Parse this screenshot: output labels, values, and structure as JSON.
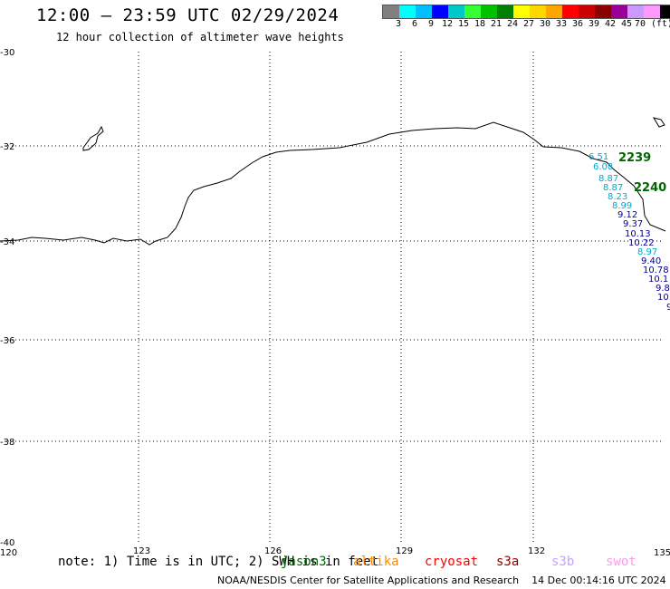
{
  "header": {
    "title": "12:00 – 23:59 UTC 02/29/2024",
    "subtitle": "12 hour collection of altimeter wave heights"
  },
  "colorbar": {
    "colors": [
      "#808080",
      "#00ffff",
      "#00bfff",
      "#0000ff",
      "#00c8c8",
      "#33ff33",
      "#00c000",
      "#008000",
      "#ffff00",
      "#ffd700",
      "#ffa500",
      "#ff0000",
      "#cc0000",
      "#8b0000",
      "#990099",
      "#cc99ff",
      "#ff99ff",
      "#000000"
    ],
    "labels": [
      "3",
      "6",
      "9",
      "12",
      "15",
      "18",
      "21",
      "24",
      "27",
      "30",
      "33",
      "36",
      "39",
      "42",
      "45",
      "70 (ft)"
    ]
  },
  "map": {
    "lon_ticks": [
      "120",
      "123",
      "126",
      "129",
      "132",
      "135"
    ],
    "lat_ticks": [
      "-30",
      "-32",
      "-34",
      "-36",
      "-38",
      "-40"
    ],
    "pass_labels": [
      {
        "text": "2239",
        "color": "#006600"
      },
      {
        "text": "2240",
        "color": "#006600"
      }
    ],
    "observations": [
      {
        "value": "6.51",
        "color": "#00aacc"
      },
      {
        "value": "6.08",
        "color": "#00aacc"
      },
      {
        "value": "8.87",
        "color": "#00aacc"
      },
      {
        "value": "8.87",
        "color": "#00aacc"
      },
      {
        "value": "8.23",
        "color": "#00aacc"
      },
      {
        "value": "8.99",
        "color": "#00aacc"
      },
      {
        "value": "9.12",
        "color": "#000099"
      },
      {
        "value": "9.37",
        "color": "#000099"
      },
      {
        "value": "10.13",
        "color": "#000099"
      },
      {
        "value": "10.22",
        "color": "#000099"
      },
      {
        "value": "8.97",
        "color": "#00aacc"
      },
      {
        "value": "9.40",
        "color": "#000099"
      },
      {
        "value": "10.78",
        "color": "#000099"
      },
      {
        "value": "10.1",
        "color": "#000099"
      },
      {
        "value": "9.8",
        "color": "#000099"
      },
      {
        "value": "10.",
        "color": "#000099"
      },
      {
        "value": "9",
        "color": "#000099"
      }
    ]
  },
  "footer": {
    "note": "note: 1) Time is in UTC; 2) SWH is in feet",
    "satellites": [
      {
        "name": "jason3",
        "color": "#006600"
      },
      {
        "name": "altika",
        "color": "#ff8c00"
      },
      {
        "name": "cryosat",
        "color": "#ff0000"
      },
      {
        "name": "s3a",
        "color": "#8b0000"
      },
      {
        "name": "s3b",
        "color": "#c8a0ff"
      },
      {
        "name": "swot",
        "color": "#ff99ee"
      }
    ],
    "credit": "NOAA/NESDIS Center for Satellite Applications and Research",
    "timestamp": "14 Dec 00:14:16 UTC 2024"
  }
}
